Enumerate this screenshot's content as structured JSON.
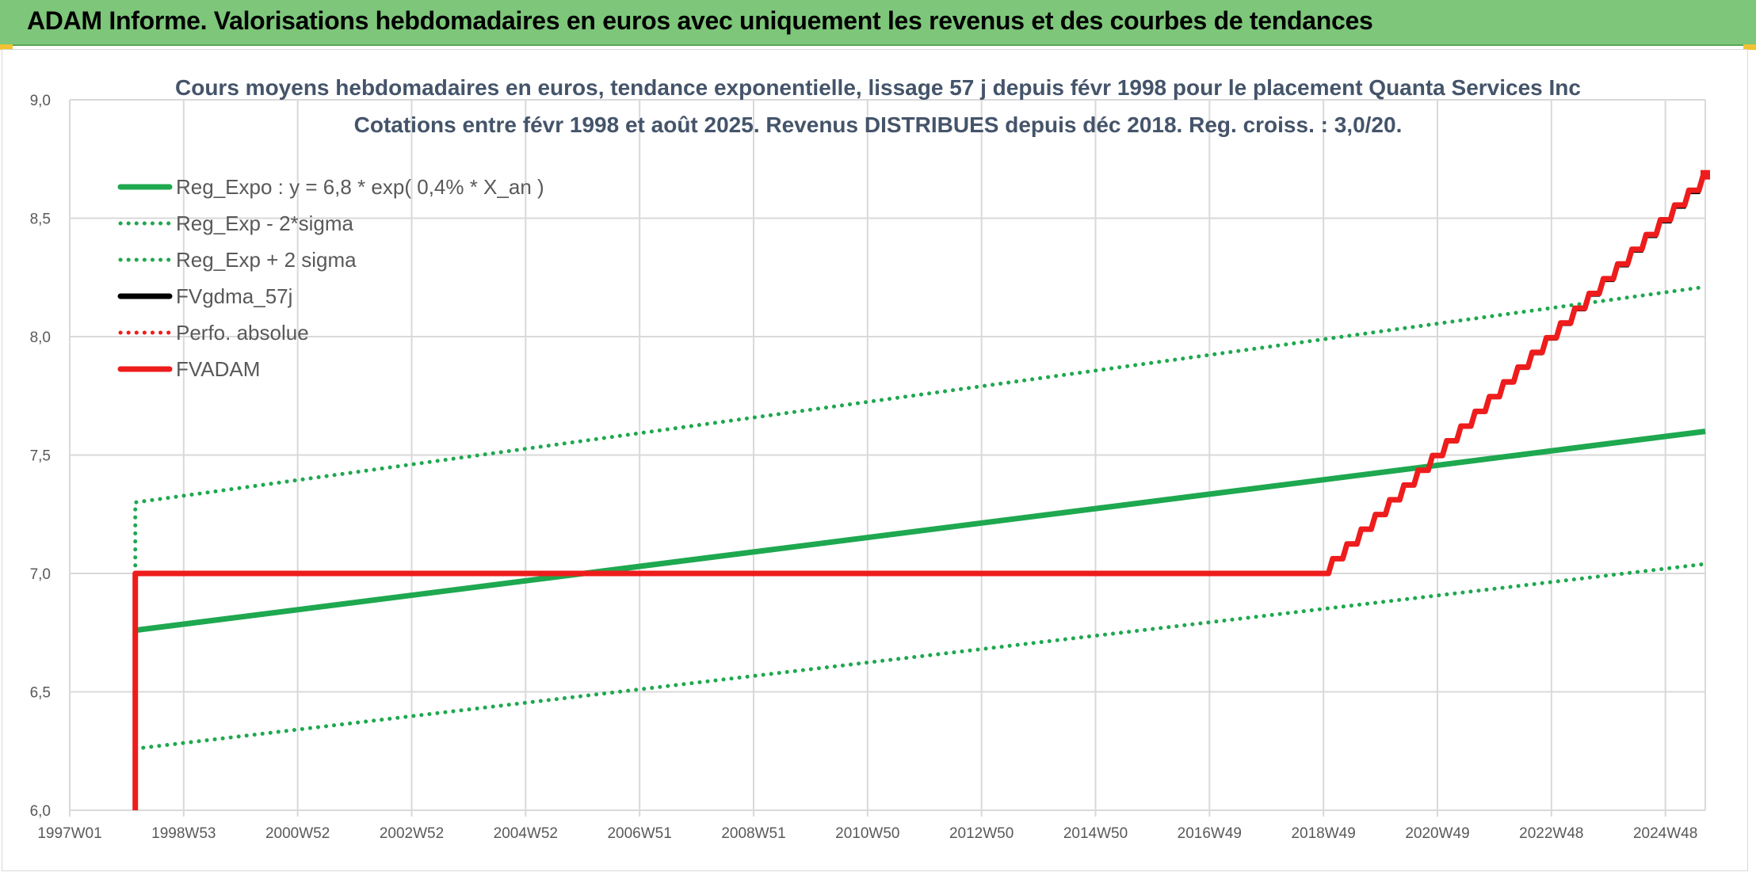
{
  "banner": {
    "title": "ADAM Informe. Valorisations hebdomadaires en euros avec uniquement les revenus et des courbes de tendances"
  },
  "colors": {
    "banner_bg": "#7dc67a",
    "green": "#1ea84f",
    "red": "#ee1c1c",
    "black": "#000000",
    "grid": "#d9d9d9",
    "text": "#595959",
    "title": "#44546a"
  },
  "chart_data": {
    "type": "line",
    "title": "Cours moyens hebdomadaires en euros, tendance exponentielle, lissage 57 j depuis févr 1998 pour le placement Quanta Services Inc",
    "subtitle": "Cotations entre févr 1998 et août 2025. Revenus DISTRIBUES depuis déc 2018. Reg. croiss. : 3,0/20.",
    "xlabel": "",
    "ylabel": "",
    "x_range": [
      1997.0,
      2025.7
    ],
    "ylim": [
      6.0,
      9.0
    ],
    "grid": true,
    "legend_position": "top-left",
    "x_ticks": [
      {
        "label": "1997W01",
        "x": 1997.0
      },
      {
        "label": "1998W53",
        "x": 1999.0
      },
      {
        "label": "2000W52",
        "x": 2001.0
      },
      {
        "label": "2002W52",
        "x": 2003.0
      },
      {
        "label": "2004W52",
        "x": 2005.0
      },
      {
        "label": "2006W51",
        "x": 2007.0
      },
      {
        "label": "2008W51",
        "x": 2009.0
      },
      {
        "label": "2010W50",
        "x": 2011.0
      },
      {
        "label": "2012W50",
        "x": 2013.0
      },
      {
        "label": "2014W50",
        "x": 2015.0
      },
      {
        "label": "2016W49",
        "x": 2017.0
      },
      {
        "label": "2018W49",
        "x": 2019.0
      },
      {
        "label": "2020W49",
        "x": 2021.0
      },
      {
        "label": "2022W48",
        "x": 2023.0
      },
      {
        "label": "2024W48",
        "x": 2025.0
      }
    ],
    "y_ticks": [
      {
        "label": "6,0",
        "y": 6.0
      },
      {
        "label": "6,5",
        "y": 6.5
      },
      {
        "label": "7,0",
        "y": 7.0
      },
      {
        "label": "7,5",
        "y": 7.5
      },
      {
        "label": "8,0",
        "y": 8.0
      },
      {
        "label": "8,5",
        "y": 8.5
      },
      {
        "label": "9,0",
        "y": 9.0
      }
    ],
    "series": [
      {
        "name": "Reg_Expo : y = 6,8 * exp( 0,4% *  X_an )",
        "color": "#1ea84f",
        "style": "solid",
        "x": [
          1998.15,
          2025.7
        ],
        "y": [
          6.76,
          7.6
        ]
      },
      {
        "name": "Reg_Exp - 2*sigma",
        "color": "#1ea84f",
        "style": "dotted",
        "x": [
          1998.15,
          2025.7
        ],
        "y": [
          6.26,
          7.04
        ]
      },
      {
        "name": "Reg_Exp + 2 sigma",
        "color": "#1ea84f",
        "style": "dotted",
        "x": [
          1998.15,
          1998.15,
          2025.7
        ],
        "y": [
          7.0,
          7.3,
          8.21
        ]
      },
      {
        "name": "FVgdma_57j",
        "color": "#000000",
        "style": "solid",
        "x": [
          1998.15,
          2018.95,
          2025.7
        ],
        "y": [
          7.0,
          7.0,
          8.67
        ]
      },
      {
        "name": "Perfo. absolue",
        "color": "#ee1c1c",
        "style": "dotted",
        "x": [],
        "y": []
      },
      {
        "name": "FVADAM",
        "color": "#ee1c1c",
        "style": "solid",
        "x": [
          1998.15,
          1998.15,
          2018.95,
          2025.7
        ],
        "y": [
          6.0,
          7.0,
          7.0,
          8.68
        ]
      }
    ]
  }
}
